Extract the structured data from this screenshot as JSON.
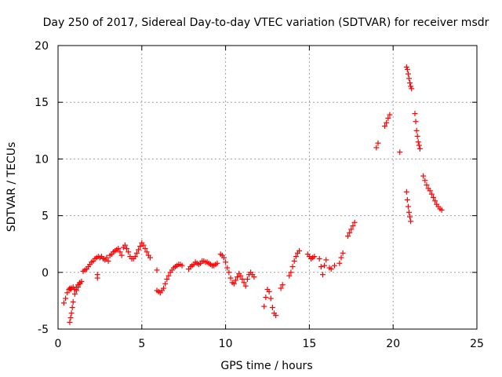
{
  "chart_data": {
    "type": "scatter",
    "title": "Day 250 of 2017, Sidereal Day-to-day VTEC variation (SDTVAR) for receiver msdr",
    "xlabel": "GPS time / hours",
    "ylabel": "SDTVAR / TECUs",
    "xlim": [
      0,
      25
    ],
    "ylim": [
      -5,
      20
    ],
    "xticks": [
      0,
      5,
      10,
      15,
      20,
      25
    ],
    "yticks": [
      -5,
      0,
      5,
      10,
      15,
      20
    ],
    "grid": true,
    "marker": "+",
    "color": "#ff0000",
    "series": [
      {
        "name": "SDTVAR",
        "x": [
          0.35,
          0.45,
          0.55,
          0.65,
          0.7,
          0.75,
          0.8,
          0.85,
          0.9,
          1.0,
          1.1,
          1.2,
          1.3,
          1.4,
          0.7,
          0.75,
          0.8,
          0.9,
          1.0,
          1.1,
          1.2,
          1.3,
          1.5,
          1.6,
          1.7,
          1.8,
          1.9,
          2.0,
          2.1,
          2.2,
          2.3,
          2.4,
          2.5,
          2.6,
          2.7,
          2.8,
          2.9,
          3.0,
          3.1,
          3.2,
          3.3,
          3.4,
          3.5,
          3.6,
          3.7,
          3.8,
          2.35,
          2.35,
          3.9,
          4.0,
          4.1,
          4.2,
          4.3,
          4.4,
          4.5,
          4.6,
          4.7,
          4.8,
          4.9,
          5.0,
          5.1,
          5.2,
          5.3,
          5.4,
          5.5,
          5.9,
          5.9,
          6.0,
          6.1,
          6.2,
          6.3,
          6.4,
          6.5,
          6.6,
          6.7,
          6.8,
          6.9,
          7.0,
          7.1,
          7.2,
          7.3,
          7.4,
          7.8,
          7.9,
          8.0,
          8.1,
          8.2,
          8.3,
          8.4,
          8.5,
          8.6,
          8.7,
          8.8,
          8.9,
          9.0,
          9.1,
          9.2,
          9.3,
          9.4,
          9.5,
          9.7,
          9.8,
          9.9,
          10.0,
          10.1,
          10.2,
          10.3,
          10.4,
          10.5,
          10.6,
          10.7,
          10.8,
          10.9,
          11.0,
          11.1,
          11.2,
          11.3,
          11.4,
          11.5,
          11.6,
          11.7,
          12.3,
          12.4,
          12.5,
          12.6,
          12.7,
          12.8,
          12.9,
          13.0,
          13.3,
          13.4,
          13.8,
          13.9,
          14.0,
          14.1,
          14.2,
          14.3,
          14.4,
          14.9,
          15.0,
          15.1,
          15.2,
          15.3,
          15.6,
          15.7,
          15.8,
          15.9,
          16.0,
          16.2,
          16.3,
          16.5,
          16.8,
          16.9,
          17.0,
          17.3,
          17.4,
          17.5,
          17.6,
          17.7,
          19.0,
          19.1,
          19.5,
          19.6,
          19.7,
          19.8,
          20.4,
          20.8,
          20.85,
          20.9,
          20.95,
          21.0,
          21.05,
          21.1,
          20.8,
          20.85,
          20.9,
          20.95,
          21.0,
          21.05,
          21.3,
          21.35,
          21.4,
          21.45,
          21.5,
          21.55,
          21.6,
          21.8,
          21.9,
          22.0,
          22.1,
          22.2,
          22.3,
          22.4,
          22.5,
          22.6,
          22.7,
          22.8,
          22.9
        ],
        "y": [
          -2.7,
          -2.3,
          -1.8,
          -1.5,
          -4.4,
          -4.0,
          -3.6,
          -3.1,
          -2.6,
          -1.9,
          -1.6,
          -1.3,
          -1.0,
          -0.8,
          -1.4,
          -1.5,
          -1.4,
          -1.3,
          -1.5,
          -1.3,
          -1.1,
          -0.9,
          0.1,
          0.2,
          0.3,
          0.5,
          0.7,
          0.9,
          1.0,
          1.2,
          1.3,
          1.4,
          1.3,
          1.4,
          1.2,
          1.1,
          1.3,
          1.0,
          1.5,
          1.6,
          1.8,
          1.9,
          2.0,
          2.1,
          1.8,
          1.5,
          -0.2,
          -0.5,
          2.2,
          2.4,
          2.1,
          1.8,
          1.4,
          1.2,
          1.2,
          1.4,
          1.7,
          2.0,
          2.3,
          2.6,
          2.4,
          2.1,
          1.8,
          1.5,
          1.3,
          0.2,
          -1.6,
          -1.7,
          -1.8,
          -1.6,
          -1.4,
          -1.0,
          -0.6,
          -0.3,
          0.0,
          0.2,
          0.4,
          0.5,
          0.6,
          0.7,
          0.7,
          0.6,
          0.3,
          0.5,
          0.6,
          0.7,
          0.9,
          0.8,
          0.7,
          0.8,
          1.0,
          1.0,
          0.9,
          0.9,
          0.8,
          0.7,
          0.6,
          0.6,
          0.7,
          0.8,
          1.6,
          1.5,
          1.3,
          0.9,
          0.4,
          0.0,
          -0.5,
          -0.9,
          -1.0,
          -0.7,
          -0.4,
          -0.1,
          -0.3,
          -0.6,
          -0.9,
          -1.2,
          -0.6,
          -0.2,
          0.0,
          -0.2,
          -0.4,
          -3.0,
          -2.2,
          -1.5,
          -1.7,
          -2.3,
          -3.1,
          -3.6,
          -3.8,
          -1.4,
          -1.1,
          -0.3,
          0.0,
          0.5,
          1.0,
          1.4,
          1.7,
          1.9,
          1.6,
          1.4,
          1.2,
          1.3,
          1.4,
          1.2,
          0.5,
          -0.2,
          0.6,
          1.1,
          0.4,
          0.3,
          0.6,
          0.8,
          1.3,
          1.7,
          3.2,
          3.5,
          3.8,
          4.1,
          4.4,
          11.0,
          11.4,
          12.9,
          13.2,
          13.6,
          13.9,
          10.6,
          18.1,
          17.9,
          17.5,
          17.1,
          16.7,
          16.4,
          16.2,
          7.1,
          6.4,
          5.8,
          5.3,
          4.9,
          4.5,
          14.0,
          13.3,
          12.5,
          12.0,
          11.5,
          11.2,
          10.9,
          8.5,
          8.1,
          7.7,
          7.4,
          7.2,
          6.9,
          6.6,
          6.3,
          6.0,
          5.8,
          5.6,
          5.5
        ]
      }
    ]
  }
}
